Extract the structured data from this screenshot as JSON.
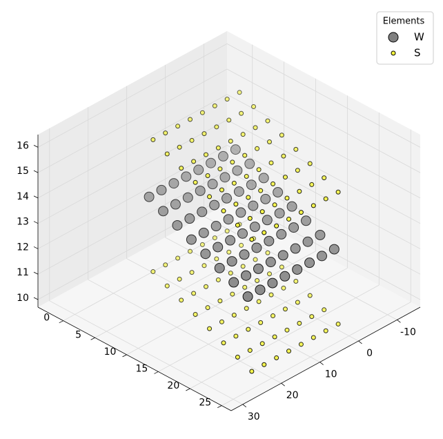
{
  "chart_data": {
    "type": "scatter3d",
    "legend_title": "Elements",
    "legend_position": "upper right",
    "grid": true,
    "xlim": [
      -16,
      33
    ],
    "ylim": [
      -4,
      26.5
    ],
    "zlim": [
      9.7,
      16.5
    ],
    "xticks": [
      -10,
      0,
      10,
      20,
      30
    ],
    "yticks": [
      0,
      5,
      10,
      15,
      20,
      25
    ],
    "zticks": [
      10,
      11,
      12,
      13,
      14,
      15,
      16
    ],
    "series": [
      {
        "name": "W",
        "color": "#808080",
        "x": [
          -10,
          -6.8,
          -3.6,
          -0.4,
          2.8,
          6,
          9.2,
          12.4,
          -8.4,
          -5.2,
          -2,
          1.2,
          4.4,
          7.6,
          10.8,
          14,
          -6.8,
          -3.6,
          -0.4,
          2.8,
          6,
          9.2,
          12.4,
          15.6,
          -5.2,
          -2,
          1.2,
          4.4,
          7.6,
          10.8,
          14,
          17.2,
          -3.6,
          -0.4,
          2.8,
          6,
          9.2,
          12.4,
          15.6,
          18.8,
          -2,
          1.2,
          4.4,
          7.6,
          10.8,
          14,
          17.2,
          20.4,
          -0.4,
          2.8,
          6,
          9.2,
          12.4,
          15.6,
          18.8,
          22,
          1.2,
          4.4,
          7.6,
          10.8,
          14,
          17.2,
          20.4,
          23.6
        ],
        "y": [
          1,
          1,
          1,
          1,
          1,
          1,
          1,
          1,
          4.2,
          4.2,
          4.2,
          4.2,
          4.2,
          4.2,
          4.2,
          4.2,
          7.4,
          7.4,
          7.4,
          7.4,
          7.4,
          7.4,
          7.4,
          7.4,
          10.6,
          10.6,
          10.6,
          10.6,
          10.6,
          10.6,
          10.6,
          10.6,
          13.8,
          13.8,
          13.8,
          13.8,
          13.8,
          13.8,
          13.8,
          13.8,
          17,
          17,
          17,
          17,
          17,
          17,
          17,
          17,
          20.2,
          20.2,
          20.2,
          20.2,
          20.2,
          20.2,
          20.2,
          20.2,
          23.4,
          23.4,
          23.4,
          23.4,
          23.4,
          23.4,
          23.4,
          23.4
        ],
        "z": [
          13,
          13,
          13,
          13,
          13,
          13,
          13,
          13,
          13,
          13,
          13,
          13,
          13,
          13,
          13,
          13,
          13,
          13,
          13,
          13,
          13,
          13,
          13,
          13,
          13,
          13,
          13,
          13,
          13,
          13,
          13,
          13,
          13,
          13,
          13,
          13,
          13,
          13,
          13,
          13,
          13,
          13,
          13,
          13,
          13,
          13,
          13,
          13,
          13,
          13,
          13,
          13,
          13,
          13,
          13,
          13,
          13,
          13,
          13,
          13,
          13,
          13,
          13,
          13
        ]
      },
      {
        "name": "S",
        "color": "#f5f53c",
        "x": [
          -8.4,
          -5.2,
          -2,
          1.2,
          4.4,
          7.6,
          10.8,
          14,
          -6.8,
          -3.6,
          -0.4,
          2.8,
          6,
          9.2,
          12.4,
          15.6,
          -5.2,
          -2,
          1.2,
          4.4,
          7.6,
          10.8,
          14,
          17.2,
          -3.6,
          -0.4,
          2.8,
          6,
          9.2,
          12.4,
          15.6,
          18.8,
          -2,
          1.2,
          4.4,
          7.6,
          10.8,
          14,
          17.2,
          20.4,
          -0.4,
          2.8,
          6,
          9.2,
          12.4,
          15.6,
          18.8,
          22,
          1.2,
          4.4,
          7.6,
          10.8,
          14,
          17.2,
          20.4,
          23.6,
          2.8,
          6,
          9.2,
          12.4,
          15.6,
          18.8,
          22,
          25.2,
          -8.4,
          -5.2,
          -2,
          1.2,
          4.4,
          7.6,
          10.8,
          14,
          -6.8,
          -3.6,
          -0.4,
          2.8,
          6,
          9.2,
          12.4,
          15.6,
          -5.2,
          -2,
          1.2,
          4.4,
          7.6,
          10.8,
          14,
          17.2,
          -3.6,
          -0.4,
          2.8,
          6,
          9.2,
          12.4,
          15.6,
          18.8,
          -2,
          1.2,
          4.4,
          7.6,
          10.8,
          14,
          17.2,
          20.4,
          -0.4,
          2.8,
          6,
          9.2,
          12.4,
          15.6,
          18.8,
          22,
          1.2,
          4.4,
          7.6,
          10.8,
          14,
          17.2,
          20.4,
          23.6,
          2.8,
          6,
          9.2,
          12.4,
          15.6,
          18.8,
          22,
          25.2
        ],
        "y": [
          2.6,
          2.6,
          2.6,
          2.6,
          2.6,
          2.6,
          2.6,
          2.6,
          5.8,
          5.8,
          5.8,
          5.8,
          5.8,
          5.8,
          5.8,
          5.8,
          9,
          9,
          9,
          9,
          9,
          9,
          9,
          9,
          12.2,
          12.2,
          12.2,
          12.2,
          12.2,
          12.2,
          12.2,
          12.2,
          15.4,
          15.4,
          15.4,
          15.4,
          15.4,
          15.4,
          15.4,
          15.4,
          18.6,
          18.6,
          18.6,
          18.6,
          18.6,
          18.6,
          18.6,
          18.6,
          21.8,
          21.8,
          21.8,
          21.8,
          21.8,
          21.8,
          21.8,
          21.8,
          25,
          25,
          25,
          25,
          25,
          25,
          25,
          25,
          2.6,
          2.6,
          2.6,
          2.6,
          2.6,
          2.6,
          2.6,
          2.6,
          5.8,
          5.8,
          5.8,
          5.8,
          5.8,
          5.8,
          5.8,
          5.8,
          9,
          9,
          9,
          9,
          9,
          9,
          9,
          9,
          12.2,
          12.2,
          12.2,
          12.2,
          12.2,
          12.2,
          12.2,
          12.2,
          15.4,
          15.4,
          15.4,
          15.4,
          15.4,
          15.4,
          15.4,
          15.4,
          18.6,
          18.6,
          18.6,
          18.6,
          18.6,
          18.6,
          18.6,
          18.6,
          21.8,
          21.8,
          21.8,
          21.8,
          21.8,
          21.8,
          21.8,
          21.8,
          25,
          25,
          25,
          25,
          25,
          25,
          25,
          25
        ],
        "z": [
          10.4,
          10.4,
          10.4,
          10.4,
          10.4,
          10.4,
          10.4,
          10.4,
          10.4,
          10.4,
          10.4,
          10.4,
          10.4,
          10.4,
          10.4,
          10.4,
          10.4,
          10.4,
          10.4,
          10.4,
          10.4,
          10.4,
          10.4,
          10.4,
          10.4,
          10.4,
          10.4,
          10.4,
          10.4,
          10.4,
          10.4,
          10.4,
          10.4,
          10.4,
          10.4,
          10.4,
          10.4,
          10.4,
          10.4,
          10.4,
          10.4,
          10.4,
          10.4,
          10.4,
          10.4,
          10.4,
          10.4,
          10.4,
          10.4,
          10.4,
          10.4,
          10.4,
          10.4,
          10.4,
          10.4,
          10.4,
          10.4,
          10.4,
          10.4,
          10.4,
          10.4,
          10.4,
          10.4,
          10.4,
          15.6,
          15.6,
          15.6,
          15.6,
          15.6,
          15.6,
          15.6,
          15.6,
          15.6,
          15.6,
          15.6,
          15.6,
          15.6,
          15.6,
          15.6,
          15.6,
          15.6,
          15.6,
          15.6,
          15.6,
          15.6,
          15.6,
          15.6,
          15.6,
          15.6,
          15.6,
          15.6,
          15.6,
          15.6,
          15.6,
          15.6,
          15.6,
          15.6,
          15.6,
          15.6,
          15.6,
          15.6,
          15.6,
          15.6,
          15.6,
          15.6,
          15.6,
          15.6,
          15.6,
          15.6,
          15.6,
          15.6,
          15.6,
          15.6,
          15.6,
          15.6,
          15.6,
          15.6,
          15.6,
          15.6,
          15.6,
          15.6,
          15.6,
          15.6,
          15.6,
          15.6,
          15.6,
          15.6,
          15.6
        ]
      }
    ]
  }
}
